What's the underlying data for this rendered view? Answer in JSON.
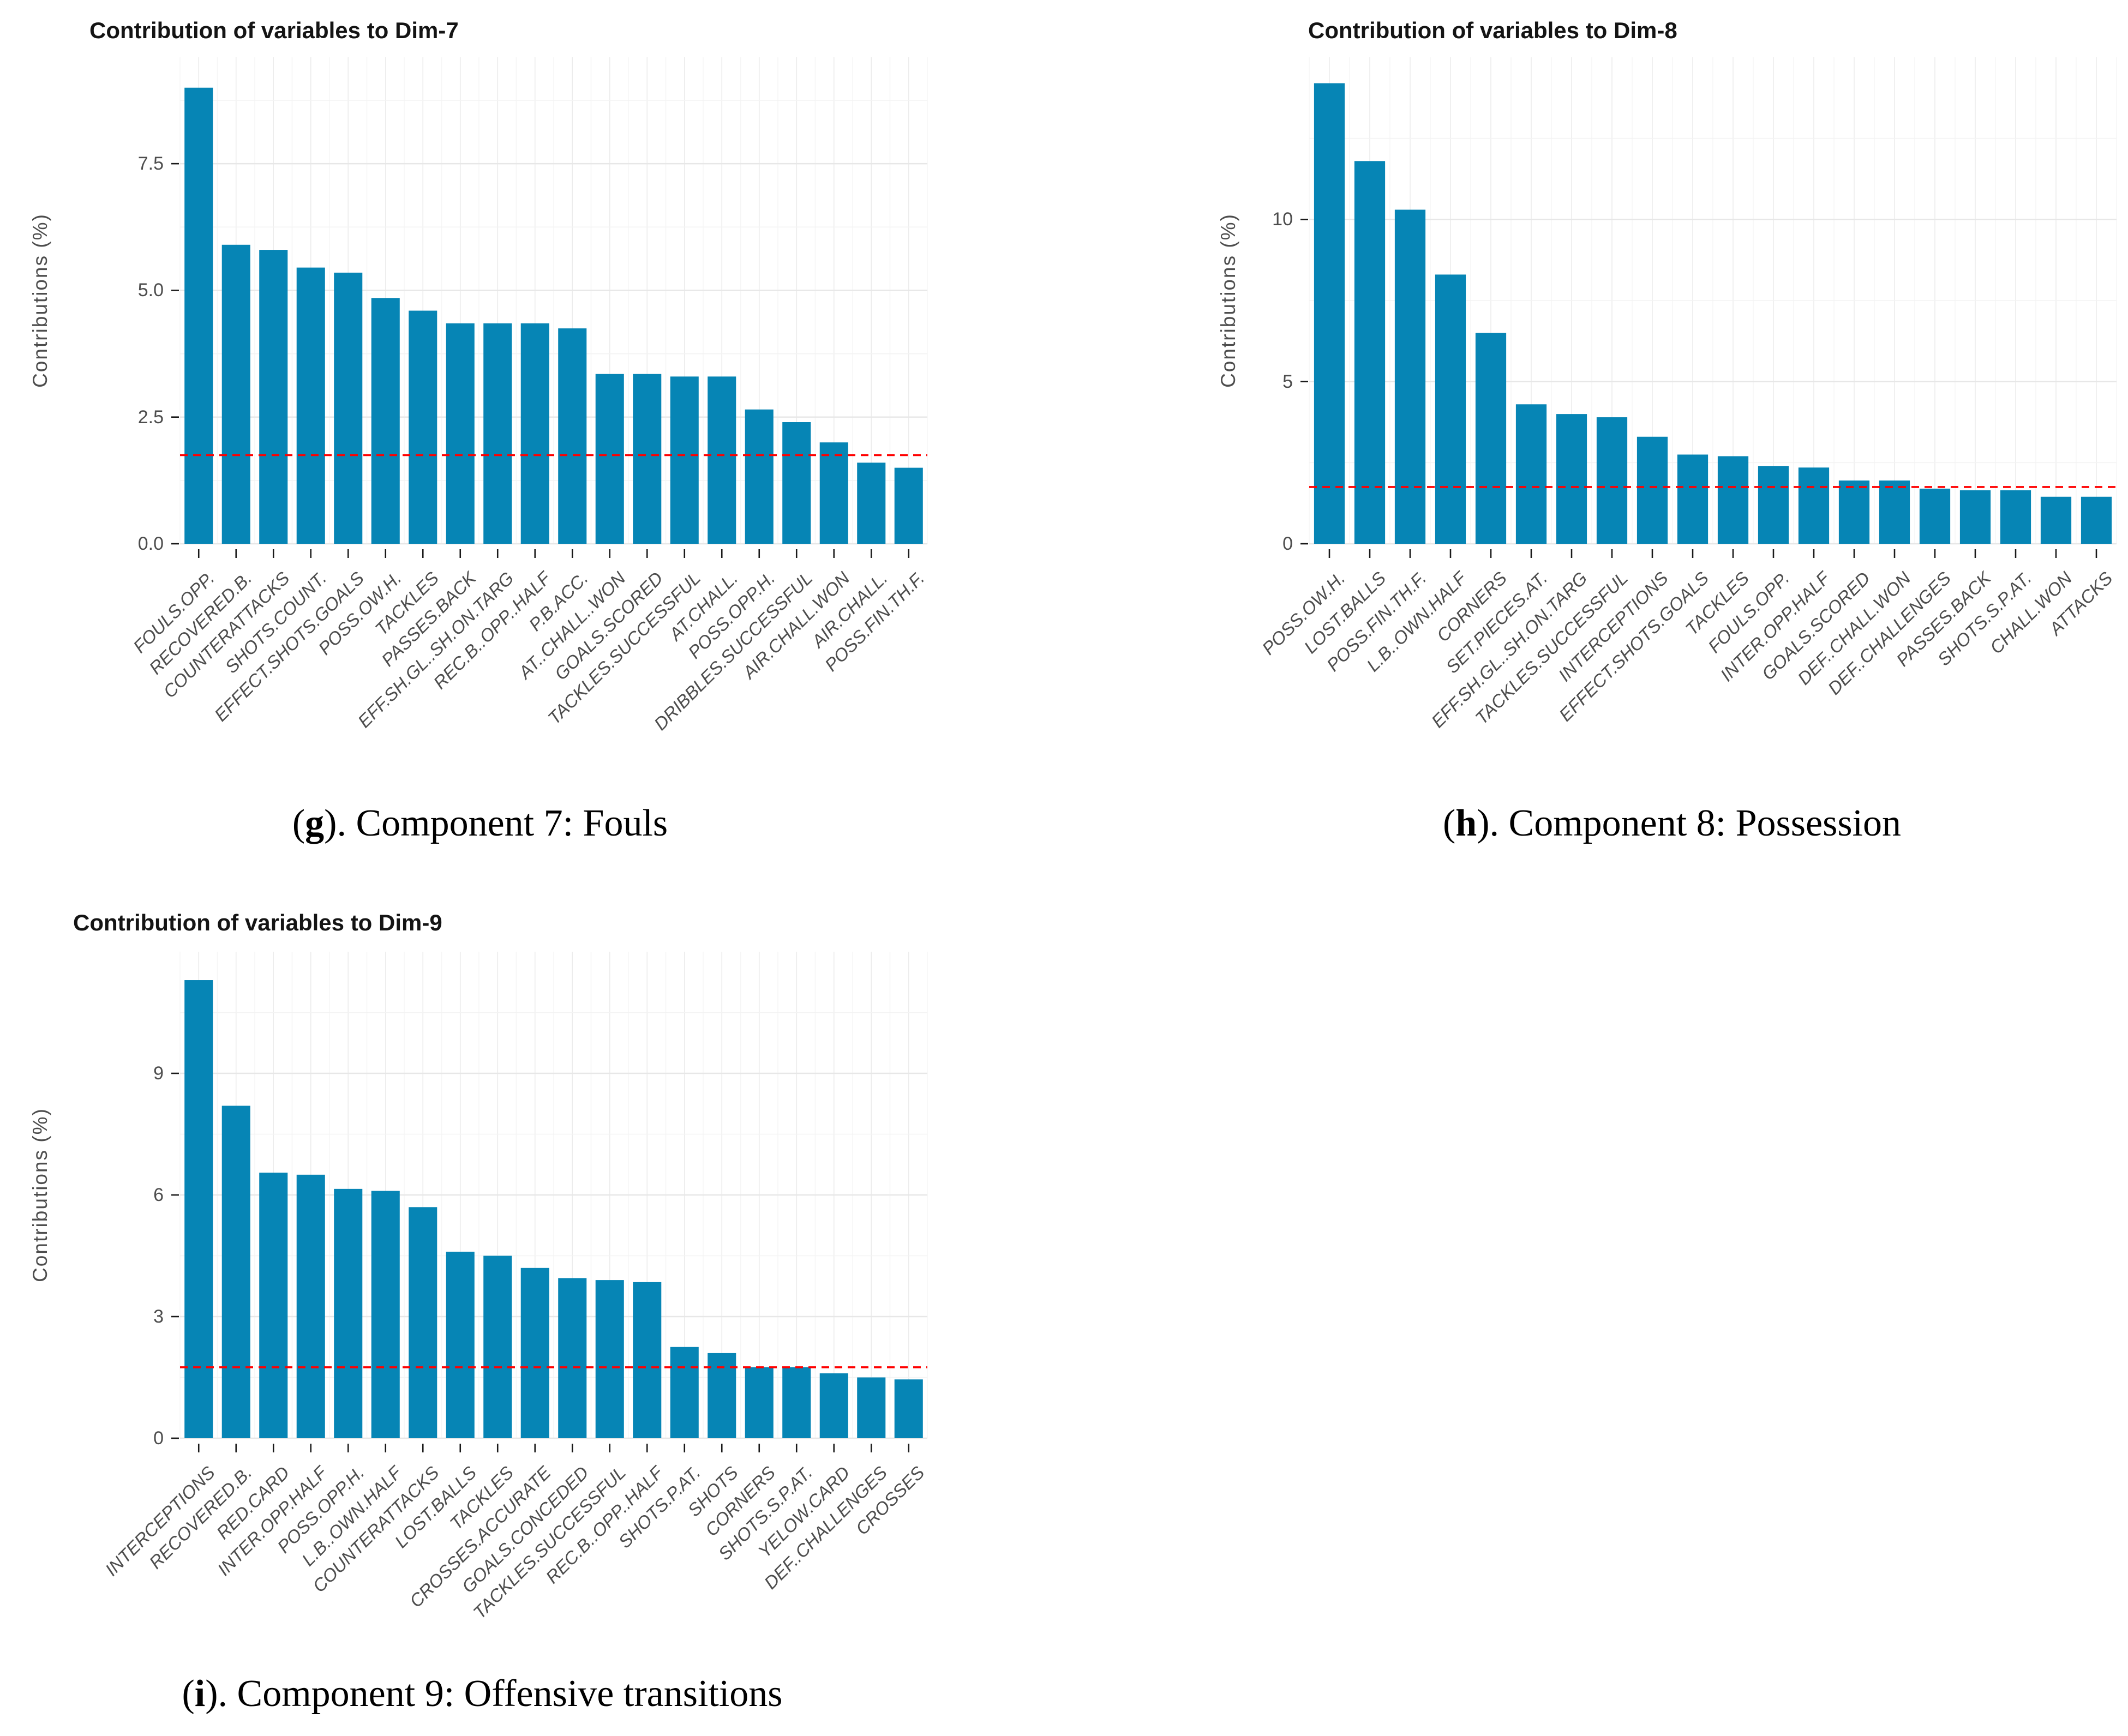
{
  "page": {
    "background": "#FFFFFF"
  },
  "chart_data": [
    {
      "type": "bar",
      "title": "Contribution of variables to Dim-7",
      "ylabel": "Contributions (%)",
      "xlabel": "",
      "legend": "none",
      "grid": true,
      "bar_color": "#0685B5",
      "refline": {
        "value": 1.75,
        "color": "#FF0000",
        "style": "dashed"
      },
      "ylim": [
        0,
        9.6
      ],
      "yticks": [
        {
          "value": 0.0,
          "label": "0.0"
        },
        {
          "value": 2.5,
          "label": "2.5"
        },
        {
          "value": 5.0,
          "label": "5.0"
        },
        {
          "value": 7.5,
          "label": "7.5"
        }
      ],
      "yminor": [
        1.25,
        3.75,
        6.25,
        8.75
      ],
      "categories": [
        "FOULS.OPP.",
        "RECOVERED.B.",
        "COUNTERATTACKS",
        "SHOTS.COUNT.",
        "EFFECT.SHOTS.GOALS",
        "POSS.OW.H.",
        "TACKLES",
        "PASSES.BACK",
        "EFF.SH.GL..SH.ON.TARG",
        "REC.B..OPP..HALF",
        "P.B.ACC.",
        "AT..CHALL..WON",
        "GOALS.SCORED",
        "TACKLES.SUCCESSFUL",
        "AT.CHALL.",
        "POSS.OPP.H.",
        "DRIBBLES.SUCCESSFUL",
        "AIR.CHALL.WON",
        "AIR.CHALL.",
        "POSS.FIN.TH.F."
      ],
      "values": [
        9.0,
        5.9,
        5.8,
        5.45,
        5.35,
        4.85,
        4.6,
        4.35,
        4.35,
        4.35,
        4.25,
        3.35,
        3.35,
        3.3,
        3.3,
        2.65,
        2.4,
        2.0,
        1.6,
        1.5
      ],
      "caption": {
        "open": "(",
        "letter": "g",
        "close_text": "). Component 7: Fouls"
      }
    },
    {
      "type": "bar",
      "title": "Contribution of variables to Dim-8",
      "ylabel": "Contributions (%)",
      "xlabel": "",
      "legend": "none",
      "grid": true,
      "bar_color": "#0685B5",
      "refline": {
        "value": 1.75,
        "color": "#FF0000",
        "style": "dashed"
      },
      "ylim": [
        0,
        15.0
      ],
      "yticks": [
        {
          "value": 0,
          "label": "0"
        },
        {
          "value": 5,
          "label": "5"
        },
        {
          "value": 10,
          "label": "10"
        }
      ],
      "yminor": [
        2.5,
        7.5,
        12.5
      ],
      "categories": [
        "POSS.OW.H.",
        "LOST.BALLS",
        "POSS.FIN.TH.F.",
        "L.B..OWN.HALF",
        "CORNERS",
        "SET.PIECES.AT.",
        "EFF.SH.GL..SH.ON.TARG",
        "TACKLES.SUCCESSFUL",
        "INTERCEPTIONS",
        "EFFECT.SHOTS.GOALS",
        "TACKLES",
        "FOULS.OPP.",
        "INTER.OPP.HALF",
        "GOALS.SCORED",
        "DEF..CHALL.WON",
        "DEF..CHALLENGES",
        "PASSES.BACK",
        "SHOTS.S.P.AT.",
        "CHALL.WON",
        "ATTACKS"
      ],
      "values": [
        14.2,
        11.8,
        10.3,
        8.3,
        6.5,
        4.3,
        4.0,
        3.9,
        3.3,
        2.75,
        2.7,
        2.4,
        2.35,
        1.95,
        1.95,
        1.7,
        1.65,
        1.65,
        1.45,
        1.45
      ],
      "caption": {
        "open": "(",
        "letter": "h",
        "close_text": "). Component 8: Possession"
      }
    },
    {
      "type": "bar",
      "title": "Contribution of variables to Dim-9",
      "ylabel": "Contributions (%)",
      "xlabel": "",
      "legend": "none",
      "grid": true,
      "bar_color": "#0685B5",
      "refline": {
        "value": 1.75,
        "color": "#FF0000",
        "style": "dashed"
      },
      "ylim": [
        0,
        12.0
      ],
      "yticks": [
        {
          "value": 0,
          "label": "0"
        },
        {
          "value": 3,
          "label": "3"
        },
        {
          "value": 6,
          "label": "6"
        },
        {
          "value": 9,
          "label": "9"
        }
      ],
      "yminor": [
        1.5,
        4.5,
        7.5,
        10.5
      ],
      "categories": [
        "INTERCEPTIONS",
        "RECOVERED.B.",
        "RED.CARD",
        "INTER.OPP.HALF",
        "POSS.OPP.H.",
        "L.B..OWN.HALF",
        "COUNTERATTACKS",
        "LOST.BALLS",
        "TACKLES",
        "CROSSES.ACCURATE",
        "GOALS.CONCEDED",
        "TACKLES.SUCCESSFUL",
        "REC.B..OPP..HALF",
        "SHOTS.P.AT.",
        "SHOTS",
        "CORNERS",
        "SHOTS.S.P.AT.",
        "YELOW.CARD",
        "DEF..CHALLENGES",
        "CROSSES"
      ],
      "values": [
        11.3,
        8.2,
        6.55,
        6.5,
        6.15,
        6.1,
        5.7,
        4.6,
        4.5,
        4.2,
        3.95,
        3.9,
        3.85,
        2.25,
        2.1,
        1.75,
        1.75,
        1.6,
        1.5,
        1.45
      ],
      "caption": {
        "open": "(",
        "letter": "i",
        "close_text": "). Component 9: Offensive transitions"
      }
    }
  ]
}
